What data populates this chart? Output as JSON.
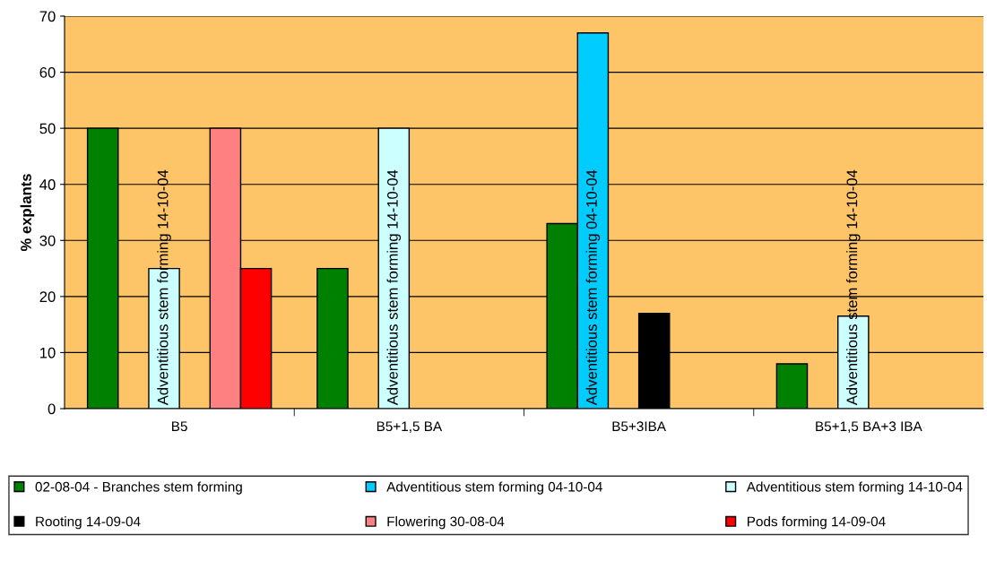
{
  "chart_data": {
    "type": "bar",
    "ylabel": "% explants",
    "categories": [
      "B5",
      "B5+1,5 BA",
      "B5+3IBA",
      "B5+1,5 BA+3 IBA"
    ],
    "ylim": [
      0,
      70
    ],
    "yticks": [
      0,
      10,
      20,
      30,
      40,
      50,
      60,
      70
    ],
    "grid": "y",
    "legend": "bottom",
    "series": [
      {
        "name": "02-08-04 - Branches stem forming",
        "color": "#008000",
        "values": [
          50,
          25,
          33,
          8
        ]
      },
      {
        "name": "Adventitious stem forming 04-10-04",
        "color": "#00ccff",
        "values": [
          null,
          null,
          67,
          null
        ],
        "value_labels": [
          null,
          null,
          "Adventitious stem forming 04-10-04",
          null
        ]
      },
      {
        "name": "Adventitious stem forming 14-10-04",
        "color": "#ccffff",
        "values": [
          25,
          50,
          null,
          16.5
        ],
        "value_labels": [
          "Adventitious stem forming 14-10-04",
          "Adventitious stem forming 14-10-04",
          null,
          "Adventitious stem forming 14-10-04"
        ]
      },
      {
        "name": "Rooting 14-09-04",
        "color": "#000000",
        "values": [
          null,
          null,
          17,
          null
        ]
      },
      {
        "name": "Flowering 30-08-04",
        "color": "#ff8080",
        "values": [
          50,
          null,
          null,
          null
        ]
      },
      {
        "name": "Pods forming 14-09-04",
        "color": "#ff0000",
        "values": [
          25,
          null,
          null,
          null
        ]
      }
    ]
  }
}
